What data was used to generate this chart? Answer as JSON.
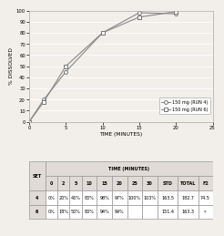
{
  "xlabel": "TIME (MINUTES)",
  "ylabel": "% DISSOLVED",
  "xlim": [
    0,
    25
  ],
  "ylim": [
    0,
    100
  ],
  "xticks": [
    0,
    5,
    10,
    15,
    20,
    25
  ],
  "yticks": [
    0,
    10,
    20,
    30,
    40,
    50,
    60,
    70,
    80,
    90,
    100
  ],
  "series": [
    {
      "label": "150 mg (RUN 4)",
      "x": [
        0,
        2,
        5,
        10,
        15,
        20
      ],
      "y": [
        0,
        20,
        45,
        80,
        98,
        97
      ],
      "marker": "o",
      "color": "#888888",
      "linestyle": "-"
    },
    {
      "label": "150 mg (RUN 6)",
      "x": [
        0,
        2,
        5,
        10,
        15,
        20
      ],
      "y": [
        0,
        18,
        50,
        80,
        94,
        99
      ],
      "marker": "s",
      "color": "#888888",
      "linestyle": "-"
    }
  ],
  "bg_color": "#f2eeea",
  "table_col_headers": [
    "SET",
    "0",
    "2",
    "5",
    "10",
    "15",
    "20",
    "25",
    "30",
    "STD",
    "TOTAL",
    "F2"
  ],
  "table_time_label": "TIME (MINUTES)",
  "table_data": [
    [
      "4",
      "0%",
      "20%",
      "45%",
      "80%",
      "98%",
      "97%",
      "100%",
      "103%",
      "163.5",
      "182.7",
      "74.5"
    ],
    [
      "6",
      "0%",
      "18%",
      "50%",
      "80%",
      "94%",
      "99%",
      "",
      "",
      "151.4",
      "163.3",
      "*"
    ]
  ],
  "table_header_bg": "#e0dbd6",
  "table_cell_bg": "#ffffff",
  "table_border_color": "#999999"
}
